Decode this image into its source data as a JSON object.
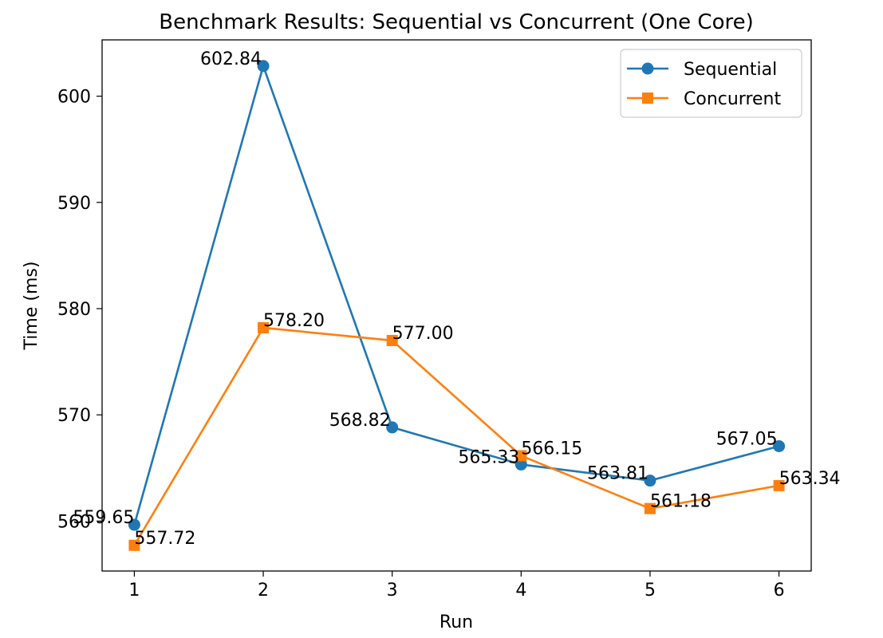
{
  "chart_data": {
    "type": "line",
    "title": "Benchmark Results: Sequential vs Concurrent (One Core)",
    "xlabel": "Run",
    "ylabel": "Time (ms)",
    "x": [
      1,
      2,
      3,
      4,
      5,
      6
    ],
    "xticks": [
      "1",
      "2",
      "3",
      "4",
      "5",
      "6"
    ],
    "xlim": [
      0.75,
      6.25
    ],
    "yticks": [
      "560",
      "570",
      "580",
      "590",
      "600"
    ],
    "ylim": [
      555.3,
      605.3
    ],
    "grid": false,
    "legend_position": "top-right",
    "series": [
      {
        "name": "Sequential",
        "color": "#1f77b4",
        "marker": "circle",
        "values": [
          559.65,
          602.84,
          568.82,
          565.33,
          563.81,
          567.05
        ],
        "labels": [
          "559.65",
          "602.84",
          "568.82",
          "565.33",
          "563.81",
          "567.05"
        ]
      },
      {
        "name": "Concurrent",
        "color": "#ff7f0e",
        "marker": "square",
        "values": [
          557.72,
          578.2,
          577.0,
          566.15,
          561.18,
          563.34
        ],
        "labels": [
          "557.72",
          "578.20",
          "577.00",
          "566.15",
          "561.18",
          "563.34"
        ]
      }
    ]
  }
}
